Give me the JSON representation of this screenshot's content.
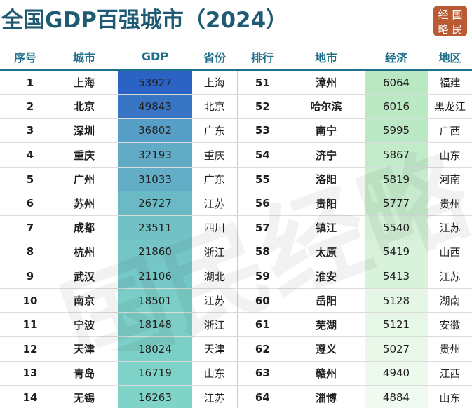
{
  "title": "全国GDP百强城市（2024）",
  "logo": {
    "chars": [
      "经",
      "国",
      "略",
      "民"
    ]
  },
  "watermark_text": "国民经略",
  "headers": [
    "序号",
    "城市",
    "GDP",
    "省份",
    "排行",
    "地市",
    "经济",
    "地区"
  ],
  "left_rows": [
    {
      "rank": "1",
      "city": "上海",
      "gdp": "53927",
      "province": "上海"
    },
    {
      "rank": "2",
      "city": "北京",
      "gdp": "49843",
      "province": "北京"
    },
    {
      "rank": "3",
      "city": "深圳",
      "gdp": "36802",
      "province": "广东"
    },
    {
      "rank": "4",
      "city": "重庆",
      "gdp": "32193",
      "province": "重庆"
    },
    {
      "rank": "5",
      "city": "广州",
      "gdp": "31033",
      "province": "广东"
    },
    {
      "rank": "6",
      "city": "苏州",
      "gdp": "26727",
      "province": "江苏"
    },
    {
      "rank": "7",
      "city": "成都",
      "gdp": "23511",
      "province": "四川"
    },
    {
      "rank": "8",
      "city": "杭州",
      "gdp": "21860",
      "province": "浙江"
    },
    {
      "rank": "9",
      "city": "武汉",
      "gdp": "21106",
      "province": "湖北"
    },
    {
      "rank": "10",
      "city": "南京",
      "gdp": "18501",
      "province": "江苏"
    },
    {
      "rank": "11",
      "city": "宁波",
      "gdp": "18148",
      "province": "浙江"
    },
    {
      "rank": "12",
      "city": "天津",
      "gdp": "18024",
      "province": "天津"
    },
    {
      "rank": "13",
      "city": "青岛",
      "gdp": "16719",
      "province": "山东"
    },
    {
      "rank": "14",
      "city": "无锡",
      "gdp": "16263",
      "province": "江苏"
    }
  ],
  "right_rows": [
    {
      "rank": "51",
      "city": "漳州",
      "gdp": "6064",
      "region": "福建"
    },
    {
      "rank": "52",
      "city": "哈尔滨",
      "gdp": "6016",
      "region": "黑龙江"
    },
    {
      "rank": "53",
      "city": "南宁",
      "gdp": "5995",
      "region": "广西"
    },
    {
      "rank": "54",
      "city": "济宁",
      "gdp": "5867",
      "region": "山东"
    },
    {
      "rank": "55",
      "city": "洛阳",
      "gdp": "5819",
      "region": "河南"
    },
    {
      "rank": "56",
      "city": "贵阳",
      "gdp": "5777",
      "region": "贵州"
    },
    {
      "rank": "57",
      "city": "镇江",
      "gdp": "5540",
      "region": "江苏"
    },
    {
      "rank": "58",
      "city": "太原",
      "gdp": "5419",
      "region": "山西"
    },
    {
      "rank": "59",
      "city": "淮安",
      "gdp": "5413",
      "region": "江苏"
    },
    {
      "rank": "60",
      "city": "岳阳",
      "gdp": "5128",
      "region": "湖南"
    },
    {
      "rank": "61",
      "city": "芜湖",
      "gdp": "5121",
      "region": "安徽"
    },
    {
      "rank": "62",
      "city": "遵义",
      "gdp": "5027",
      "region": "贵州"
    },
    {
      "rank": "63",
      "city": "赣州",
      "gdp": "4940",
      "region": "江西"
    },
    {
      "rank": "64",
      "city": "淄博",
      "gdp": "4884",
      "region": "山东"
    }
  ],
  "colors": {
    "gdp_high": "#2a63c4",
    "gdp_low": "#7fd3c7",
    "econ_high": "#b9e8c2",
    "econ_low": "#f1faf0"
  }
}
